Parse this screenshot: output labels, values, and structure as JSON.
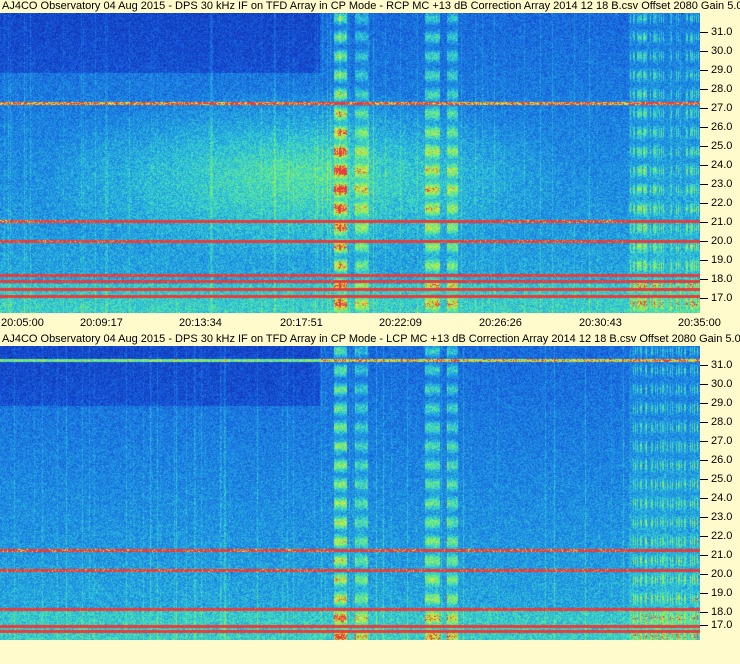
{
  "colors": {
    "background": "#fffbcc",
    "deep_blue": "#1030c0",
    "cyan": "#20c0e0",
    "green": "#80f060",
    "red": "#e03030"
  },
  "panels": [
    {
      "title": "AJ4CO Observatory 04 Aug 2015 - DPS 30 kHz IF on TFD Array in CP Mode - RCP  MC +13 dB  Correction Array 2014 12 18 B.csv  Offset 2080  Gain 5.0",
      "y_ticks": [
        "31.0",
        "30.0",
        "29.0",
        "28.0",
        "27.0",
        "26.0",
        "25.0",
        "24.0",
        "23.0",
        "22.0",
        "21.0",
        "20.0",
        "19.0",
        "18.0",
        "17.0"
      ],
      "x_ticks": [
        "20:05:00",
        "20:09:17",
        "20:13:34",
        "20:17:51",
        "20:22:09",
        "20:26:26",
        "20:30:43",
        "20:35:00"
      ]
    },
    {
      "title": "AJ4CO Observatory 04 Aug 2015 - DPS 30 kHz IF on TFD Array in CP Mode - LCP  MC +13 dB  Correction Array 2014 12 18 B.csv  Offset 2080  Gain 5.0",
      "y_ticks": [
        "31.0",
        "30.0",
        "29.0",
        "28.0",
        "27.0",
        "26.0",
        "25.0",
        "24.0",
        "23.0",
        "22.0",
        "21.0",
        "20.0",
        "19.0",
        "18.0",
        "17.0"
      ],
      "x_ticks": []
    }
  ]
}
